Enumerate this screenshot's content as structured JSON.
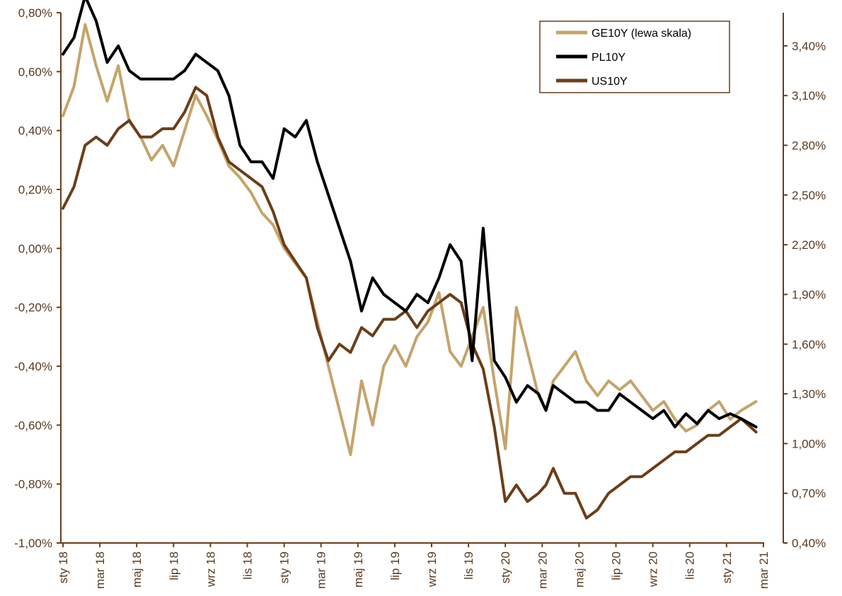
{
  "chart_data": {
    "type": "line",
    "grid": false,
    "legend_position": "top-right",
    "x_tick_labels": [
      "sty 18",
      "mar 18",
      "maj 18",
      "lip 18",
      "wrz 18",
      "lis 18",
      "sty 19",
      "mar 19",
      "maj 19",
      "lip 19",
      "wrz 19",
      "lis 19",
      "sty 20",
      "mar 20",
      "maj 20",
      "lip 20",
      "wrz 20",
      "lis 20",
      "sty 21",
      "mar 21"
    ],
    "left_axis": {
      "min": -1.0,
      "max": 0.8,
      "ticks": [
        0.8,
        0.6,
        0.4,
        0.2,
        0.0,
        -0.2,
        -0.4,
        -0.6,
        -0.8,
        -1.0
      ],
      "tick_labels": [
        "0,80%",
        "0,60%",
        "0,40%",
        "0,20%",
        "0,00%",
        "-0,20%",
        "-0,40%",
        "-0,60%",
        "-0,80%",
        "-1,00%"
      ]
    },
    "right_axis": {
      "min": 0.4,
      "max": 3.6,
      "ticks": [
        3.4,
        3.1,
        2.8,
        2.5,
        2.2,
        1.9,
        1.6,
        1.3,
        1.0,
        0.7,
        0.4
      ],
      "tick_labels": [
        "3,40%",
        "3,10%",
        "2,80%",
        "2,50%",
        "2,20%",
        "1,90%",
        "1,60%",
        "1,30%",
        "1,00%",
        "0,70%",
        "0,40%"
      ]
    },
    "series": [
      {
        "name": "GE10Y (lewa skala)",
        "axis": "left",
        "color": "#c4a46b",
        "x": [
          0,
          0.3,
          0.6,
          0.9,
          1.2,
          1.5,
          1.8,
          2.1,
          2.4,
          2.7,
          3.0,
          3.3,
          3.6,
          3.9,
          4.2,
          4.5,
          4.8,
          5.1,
          5.4,
          5.7,
          6.0,
          6.3,
          6.6,
          6.9,
          7.2,
          7.5,
          7.8,
          8.1,
          8.4,
          8.7,
          9.0,
          9.3,
          9.6,
          9.9,
          10.2,
          10.5,
          10.8,
          11.1,
          11.4,
          11.7,
          12.0,
          12.3,
          12.6,
          12.9,
          13.1,
          13.3,
          13.6,
          13.9,
          14.2,
          14.5,
          14.8,
          15.1,
          15.4,
          15.7,
          16.0,
          16.3,
          16.6,
          16.9,
          17.2,
          17.5,
          17.8,
          18.1,
          18.4,
          18.8
        ],
        "values": [
          0.45,
          0.55,
          0.76,
          0.62,
          0.5,
          0.62,
          0.43,
          0.38,
          0.3,
          0.35,
          0.28,
          0.4,
          0.52,
          0.45,
          0.37,
          0.28,
          0.24,
          0.19,
          0.12,
          0.08,
          0.0,
          -0.05,
          -0.1,
          -0.25,
          -0.4,
          -0.55,
          -0.7,
          -0.45,
          -0.6,
          -0.4,
          -0.33,
          -0.4,
          -0.3,
          -0.25,
          -0.15,
          -0.35,
          -0.4,
          -0.3,
          -0.2,
          -0.45,
          -0.68,
          -0.2,
          -0.35,
          -0.5,
          -0.55,
          -0.45,
          -0.4,
          -0.35,
          -0.45,
          -0.5,
          -0.45,
          -0.48,
          -0.45,
          -0.5,
          -0.55,
          -0.52,
          -0.58,
          -0.62,
          -0.6,
          -0.55,
          -0.52,
          -0.58,
          -0.55,
          -0.52
        ]
      },
      {
        "name": "PL10Y",
        "axis": "right",
        "color": "#000000",
        "x": [
          0,
          0.3,
          0.6,
          0.9,
          1.2,
          1.5,
          1.8,
          2.1,
          2.4,
          2.7,
          3.0,
          3.3,
          3.6,
          3.9,
          4.2,
          4.5,
          4.8,
          5.1,
          5.4,
          5.7,
          6.0,
          6.3,
          6.6,
          6.9,
          7.2,
          7.5,
          7.8,
          8.1,
          8.4,
          8.7,
          9.0,
          9.3,
          9.6,
          9.9,
          10.2,
          10.5,
          10.8,
          11.1,
          11.4,
          11.7,
          12.0,
          12.3,
          12.6,
          12.9,
          13.1,
          13.3,
          13.6,
          13.9,
          14.2,
          14.5,
          14.8,
          15.1,
          15.4,
          15.7,
          16.0,
          16.3,
          16.6,
          16.9,
          17.2,
          17.5,
          17.8,
          18.1,
          18.4,
          18.8
        ],
        "values": [
          3.35,
          3.45,
          3.7,
          3.55,
          3.3,
          3.4,
          3.25,
          3.2,
          3.2,
          3.2,
          3.2,
          3.25,
          3.35,
          3.3,
          3.25,
          3.1,
          2.8,
          2.7,
          2.7,
          2.6,
          2.9,
          2.85,
          2.95,
          2.7,
          2.5,
          2.3,
          2.1,
          1.8,
          2.0,
          1.9,
          1.85,
          1.8,
          1.9,
          1.85,
          2.0,
          2.2,
          2.1,
          1.5,
          2.3,
          1.5,
          1.4,
          1.25,
          1.35,
          1.3,
          1.2,
          1.35,
          1.3,
          1.25,
          1.25,
          1.2,
          1.2,
          1.3,
          1.25,
          1.2,
          1.15,
          1.2,
          1.1,
          1.18,
          1.12,
          1.2,
          1.15,
          1.18,
          1.15,
          1.1
        ]
      },
      {
        "name": "US10Y",
        "axis": "right",
        "color": "#6b3e18",
        "x": [
          0,
          0.3,
          0.6,
          0.9,
          1.2,
          1.5,
          1.8,
          2.1,
          2.4,
          2.7,
          3.0,
          3.3,
          3.6,
          3.9,
          4.2,
          4.5,
          4.8,
          5.1,
          5.4,
          5.7,
          6.0,
          6.3,
          6.6,
          6.9,
          7.2,
          7.5,
          7.8,
          8.1,
          8.4,
          8.7,
          9.0,
          9.3,
          9.6,
          9.9,
          10.2,
          10.5,
          10.8,
          11.1,
          11.4,
          11.7,
          12.0,
          12.3,
          12.6,
          12.9,
          13.1,
          13.3,
          13.6,
          13.9,
          14.2,
          14.5,
          14.8,
          15.1,
          15.4,
          15.7,
          16.0,
          16.3,
          16.6,
          16.9,
          17.2,
          17.5,
          17.8,
          18.1,
          18.4,
          18.8
        ],
        "values": [
          2.42,
          2.55,
          2.8,
          2.85,
          2.8,
          2.9,
          2.95,
          2.85,
          2.85,
          2.9,
          2.9,
          3.0,
          3.15,
          3.1,
          2.85,
          2.7,
          2.65,
          2.6,
          2.55,
          2.4,
          2.2,
          2.1,
          2.0,
          1.7,
          1.5,
          1.6,
          1.55,
          1.7,
          1.65,
          1.75,
          1.75,
          1.8,
          1.7,
          1.8,
          1.85,
          1.9,
          1.85,
          1.6,
          1.45,
          1.1,
          0.65,
          0.75,
          0.65,
          0.7,
          0.75,
          0.85,
          0.7,
          0.7,
          0.55,
          0.6,
          0.7,
          0.75,
          0.8,
          0.8,
          0.85,
          0.9,
          0.95,
          0.95,
          1.0,
          1.05,
          1.05,
          1.1,
          1.15,
          1.07
        ]
      }
    ]
  }
}
